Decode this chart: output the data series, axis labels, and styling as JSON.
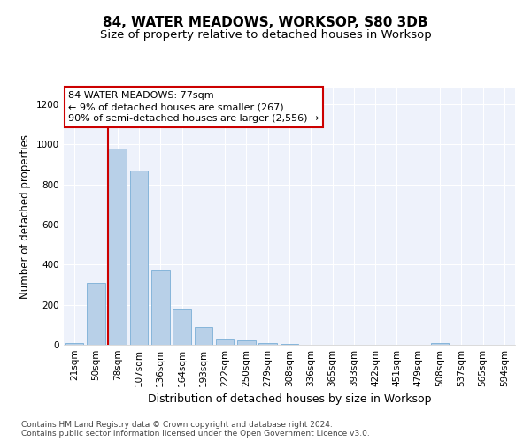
{
  "title": "84, WATER MEADOWS, WORKSOP, S80 3DB",
  "subtitle": "Size of property relative to detached houses in Worksop",
  "xlabel": "Distribution of detached houses by size in Worksop",
  "ylabel": "Number of detached properties",
  "bar_labels": [
    "21sqm",
    "50sqm",
    "78sqm",
    "107sqm",
    "136sqm",
    "164sqm",
    "193sqm",
    "222sqm",
    "250sqm",
    "279sqm",
    "308sqm",
    "336sqm",
    "365sqm",
    "393sqm",
    "422sqm",
    "451sqm",
    "479sqm",
    "508sqm",
    "537sqm",
    "565sqm",
    "594sqm"
  ],
  "bar_values": [
    10,
    310,
    980,
    870,
    375,
    175,
    90,
    25,
    20,
    10,
    5,
    0,
    0,
    0,
    0,
    0,
    0,
    10,
    0,
    0,
    0
  ],
  "bar_color": "#b8d0e8",
  "bar_edge_color": "#7aaed6",
  "vline_x_index": 2,
  "vline_color": "#cc0000",
  "annotation_box_text": "84 WATER MEADOWS: 77sqm\n← 9% of detached houses are smaller (267)\n90% of semi-detached houses are larger (2,556) →",
  "annotation_box_edge_color": "#cc0000",
  "ylim": [
    0,
    1280
  ],
  "yticks": [
    0,
    200,
    400,
    600,
    800,
    1000,
    1200
  ],
  "background_color": "#eef2fb",
  "grid_color": "#ffffff",
  "footer_text": "Contains HM Land Registry data © Crown copyright and database right 2024.\nContains public sector information licensed under the Open Government Licence v3.0.",
  "title_fontsize": 11,
  "subtitle_fontsize": 9.5,
  "xlabel_fontsize": 9,
  "ylabel_fontsize": 8.5,
  "tick_fontsize": 7.5,
  "annotation_fontsize": 8,
  "footer_fontsize": 6.5
}
